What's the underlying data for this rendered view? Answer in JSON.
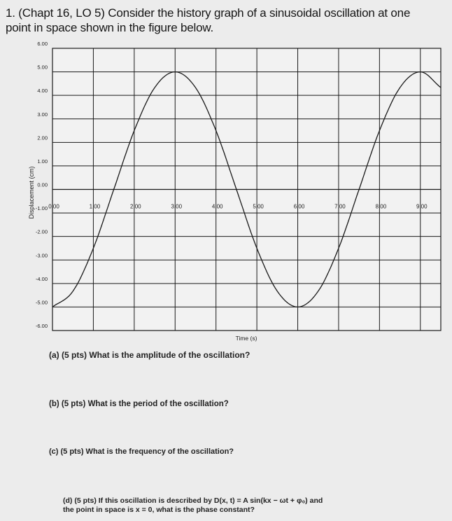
{
  "question": {
    "line1": "1. (Chapt 16, LO 5) Consider the history graph of a sinusoidal oscillation at one",
    "line2": "point in space shown in the figure below."
  },
  "chart_data": {
    "type": "line",
    "xlabel": "Time (s)",
    "ylabel": "Displacement (cm)",
    "xlim": [
      0,
      9.5
    ],
    "ylim": [
      -6,
      6
    ],
    "grid": true,
    "x_ticks": [
      "0.00",
      "1.00",
      "2.00",
      "3.00",
      "4.00",
      "5.00",
      "6.00",
      "7.00",
      "8.00",
      "9.00"
    ],
    "y_ticks": [
      "6.00",
      "5.00",
      "4.00",
      "3.00",
      "2.00",
      "1.00",
      "0.00",
      "-1.00",
      "-2.00",
      "-3.00",
      "-4.00",
      "-5.00",
      "-6.00"
    ],
    "series": [
      {
        "x": [
          0,
          0.5,
          1,
          1.5,
          2,
          2.5,
          3,
          3.5,
          4,
          4.5,
          5,
          5.5,
          6,
          6.5,
          7,
          7.5,
          8,
          8.5,
          9,
          9.5
        ],
        "y": [
          -5.0,
          -4.33,
          -2.5,
          0,
          2.5,
          4.33,
          5.0,
          4.33,
          2.5,
          0,
          -2.5,
          -4.33,
          -5.0,
          -4.33,
          -2.5,
          0,
          2.5,
          4.33,
          5.0,
          4.33
        ]
      }
    ]
  },
  "subquestions": {
    "a": "(a) (5 pts) What is the amplitude of the oscillation?",
    "b": "(b) (5 pts) What is the period of the oscillation?",
    "c": "(c) (5 pts) What is the frequency of the oscillation?",
    "d1": "(d) (5 pts) If this oscillation is described by D(x, t) = A sin(kx − ωt + φ₀) and",
    "d2": "the point in space is x = 0, what is the phase constant?"
  }
}
